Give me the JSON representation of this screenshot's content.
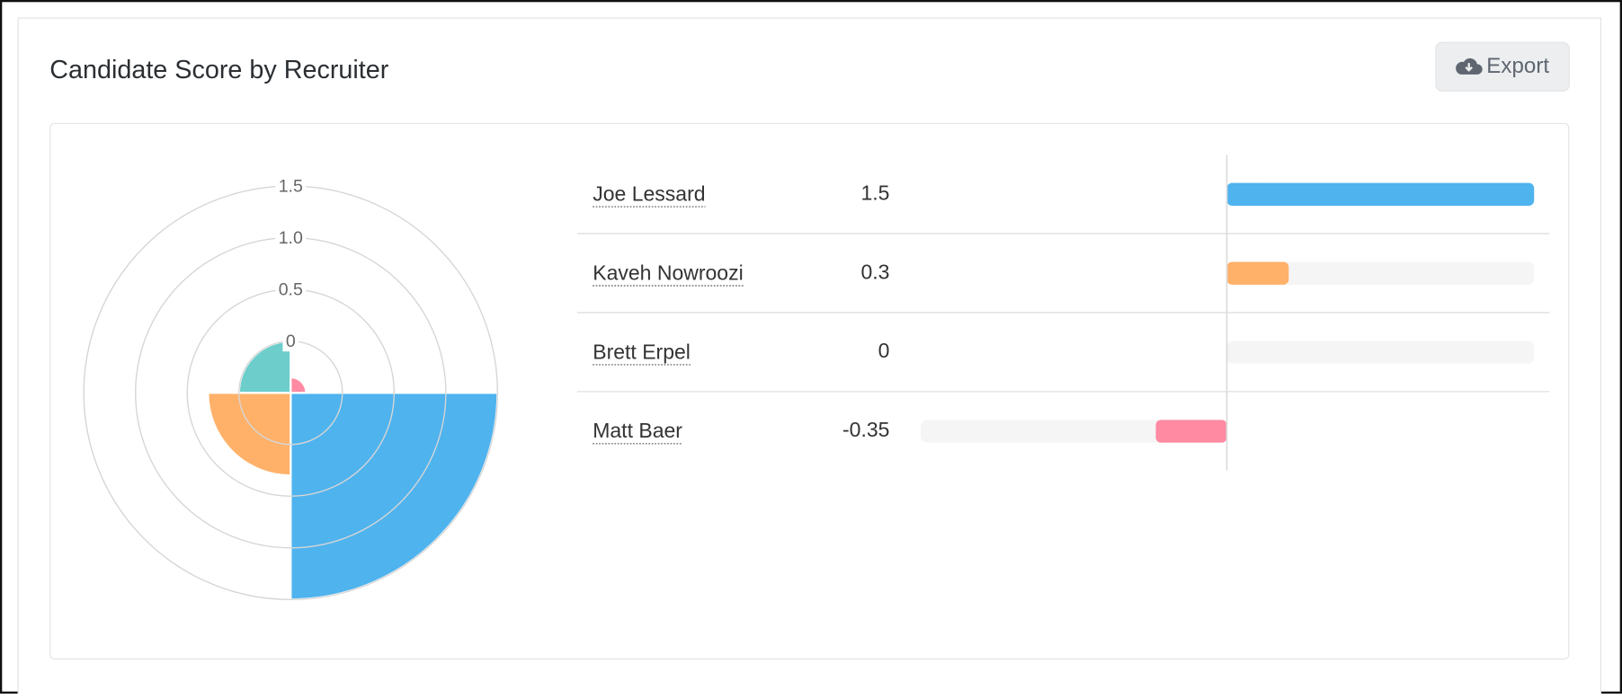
{
  "header": {
    "title": "Candidate Score by Recruiter",
    "export_label": "Export"
  },
  "chart_data": {
    "type": "polar",
    "categories": [
      "Joe Lessard",
      "Kaveh Nowroozi",
      "Brett Erpel",
      "Matt Baer"
    ],
    "values": [
      1.5,
      0.3,
      0,
      -0.35
    ],
    "colors": [
      "#4fb3ee",
      "#ffb16a",
      "#6ccdcb",
      "#ff8aa2"
    ],
    "rlim": [
      -0.5,
      1.5
    ],
    "rticks": [
      1.5,
      {
        "value": 1,
        "label": "1.0"
      },
      0.5,
      0
    ],
    "xlim": [
      -1.5,
      1.5
    ]
  }
}
